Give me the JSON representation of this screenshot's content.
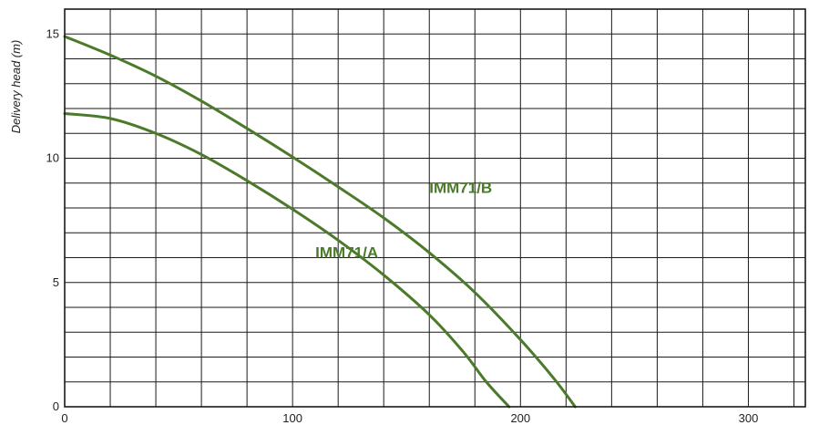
{
  "chart_data": {
    "type": "line",
    "ylabel": "Delivery head (m)",
    "xlabel": "",
    "xlim": [
      0,
      325
    ],
    "ylim": [
      0,
      16
    ],
    "x_ticks": [
      0,
      100,
      200,
      300
    ],
    "y_ticks": [
      0,
      5,
      10,
      15
    ],
    "x_grid_step": 20,
    "y_grid_step": 1,
    "grid": true,
    "legend": "inline labels",
    "colors": {
      "series": "#4a7a2a",
      "grid": "#1a1a1a"
    },
    "series": [
      {
        "name": "IMM71/A",
        "label_at": [
          110,
          6
        ],
        "points": [
          [
            0,
            11.8
          ],
          [
            20,
            11.6
          ],
          [
            40,
            11.0
          ],
          [
            60,
            10.15
          ],
          [
            80,
            9.1
          ],
          [
            100,
            7.95
          ],
          [
            120,
            6.7
          ],
          [
            140,
            5.3
          ],
          [
            160,
            3.7
          ],
          [
            175,
            2.2
          ],
          [
            185,
            1.0
          ],
          [
            195,
            0.0
          ]
        ]
      },
      {
        "name": "IMM71/B",
        "label_at": [
          160,
          8.6
        ],
        "points": [
          [
            0,
            14.9
          ],
          [
            20,
            14.15
          ],
          [
            40,
            13.3
          ],
          [
            60,
            12.3
          ],
          [
            80,
            11.2
          ],
          [
            100,
            10.05
          ],
          [
            120,
            8.85
          ],
          [
            140,
            7.6
          ],
          [
            160,
            6.2
          ],
          [
            180,
            4.6
          ],
          [
            200,
            2.7
          ],
          [
            215,
            1.1
          ],
          [
            224,
            0.0
          ]
        ]
      }
    ]
  }
}
